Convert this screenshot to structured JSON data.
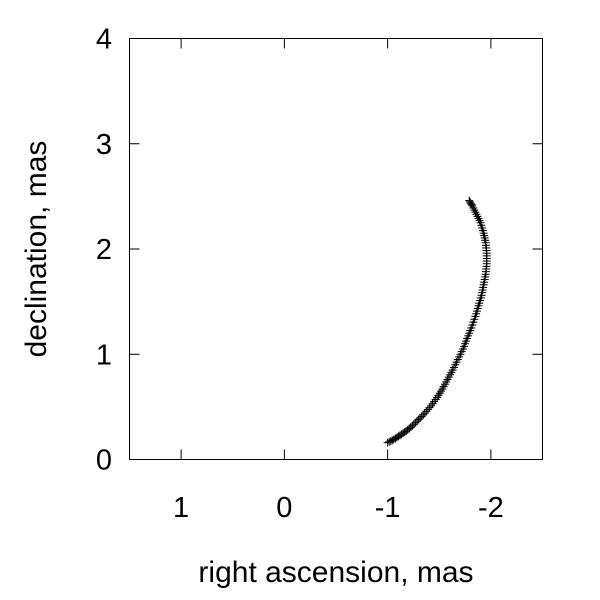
{
  "chart_data": {
    "type": "scatter",
    "xlabel": "right ascension, mas",
    "ylabel": "declination, mas",
    "xlim": [
      1.5,
      -2.5
    ],
    "ylim": [
      0,
      4
    ],
    "x_reversed": true,
    "grid": false,
    "xticks": [
      {
        "value": 1,
        "label": "1"
      },
      {
        "value": 0,
        "label": "0"
      },
      {
        "value": -1,
        "label": "-1"
      },
      {
        "value": -2,
        "label": "-2"
      }
    ],
    "yticks": [
      {
        "value": 0,
        "label": "0"
      },
      {
        "value": 1,
        "label": "1"
      },
      {
        "value": 2,
        "label": "2"
      },
      {
        "value": 3,
        "label": "3"
      },
      {
        "value": 4,
        "label": "4"
      }
    ],
    "marker": "plus",
    "color": "#000000",
    "series": [
      {
        "points": [
          [
            -1.0,
            0.16
          ],
          [
            -1.06,
            0.19
          ],
          [
            -1.12,
            0.23
          ],
          [
            -1.18,
            0.27
          ],
          [
            -1.24,
            0.32
          ],
          [
            -1.3,
            0.38
          ],
          [
            -1.36,
            0.44
          ],
          [
            -1.42,
            0.51
          ],
          [
            -1.48,
            0.59
          ],
          [
            -1.53,
            0.67
          ],
          [
            -1.58,
            0.76
          ],
          [
            -1.63,
            0.85
          ],
          [
            -1.68,
            0.95
          ],
          [
            -1.73,
            1.05
          ],
          [
            -1.77,
            1.15
          ],
          [
            -1.81,
            1.25
          ],
          [
            -1.85,
            1.36
          ],
          [
            -1.88,
            1.46
          ],
          [
            -1.91,
            1.56
          ],
          [
            -1.93,
            1.66
          ],
          [
            -1.95,
            1.76
          ],
          [
            -1.96,
            1.86
          ],
          [
            -1.96,
            1.96
          ],
          [
            -1.95,
            2.06
          ],
          [
            -1.93,
            2.15
          ],
          [
            -1.9,
            2.25
          ],
          [
            -1.86,
            2.33
          ],
          [
            -1.82,
            2.41
          ],
          [
            -1.79,
            2.46
          ]
        ]
      }
    ]
  }
}
